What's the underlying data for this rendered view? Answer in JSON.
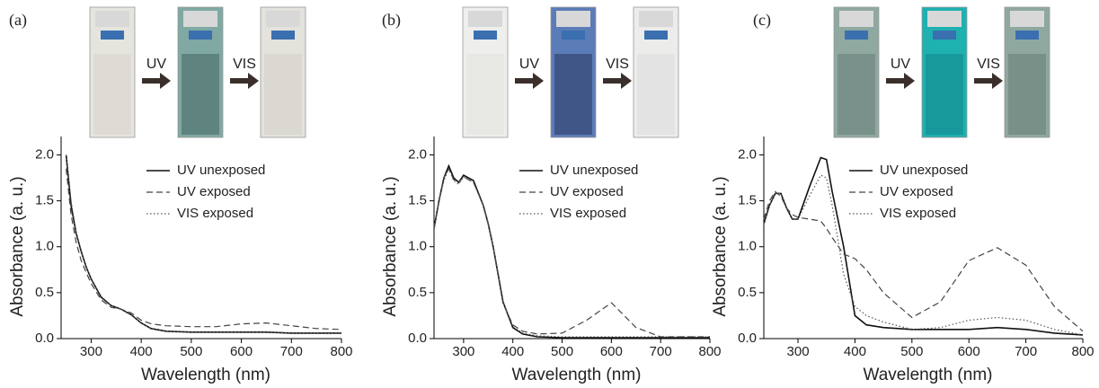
{
  "chart_data": [
    {
      "type": "line",
      "label": "(a)",
      "annotations": [
        "UV",
        "VIS"
      ],
      "xlabel": "Wavelength (nm)",
      "ylabel": "Absorbance (a. u.)",
      "xlim": [
        240,
        800
      ],
      "ylim": [
        0,
        2.2
      ],
      "xticks": [
        300,
        400,
        500,
        600,
        700,
        800
      ],
      "yticks": [
        {
          "value": 0,
          "label": "0.0"
        },
        0.5,
        {
          "value": 1,
          "label": "1.0"
        },
        1.5,
        {
          "value": 2,
          "label": "2.0"
        }
      ],
      "x": [
        240,
        250,
        260,
        270,
        280,
        290,
        300,
        320,
        340,
        350,
        360,
        380,
        400,
        420,
        450,
        500,
        550,
        600,
        650,
        700,
        750,
        800
      ],
      "series": [
        {
          "name": "UV unexposed",
          "color": "#111111",
          "style": "solid",
          "values": [
            null,
            2.0,
            1.45,
            1.15,
            0.95,
            0.78,
            0.65,
            0.45,
            0.36,
            0.34,
            0.32,
            0.26,
            0.17,
            0.11,
            0.08,
            0.07,
            0.07,
            0.07,
            0.07,
            0.06,
            0.06,
            0.06
          ]
        },
        {
          "name": "UV exposed",
          "color": "#444444",
          "style": "dashed",
          "values": [
            null,
            1.85,
            1.35,
            1.05,
            0.85,
            0.72,
            0.6,
            0.42,
            0.34,
            0.33,
            0.32,
            0.28,
            0.2,
            0.16,
            0.14,
            0.13,
            0.13,
            0.16,
            0.17,
            0.14,
            0.11,
            0.1
          ]
        },
        {
          "name": "VIS exposed",
          "color": "#555555",
          "style": "dotted",
          "values": [
            null,
            2.0,
            1.5,
            1.15,
            0.95,
            0.78,
            0.65,
            0.46,
            0.36,
            0.34,
            0.32,
            0.26,
            0.17,
            0.11,
            0.08,
            0.07,
            0.07,
            0.07,
            0.07,
            0.06,
            0.06,
            0.06
          ]
        }
      ]
    },
    {
      "type": "line",
      "label": "(b)",
      "annotations": [
        "UV",
        "VIS"
      ],
      "xlabel": "Wavelength (nm)",
      "ylabel": "Absorbance (a. u.)",
      "xlim": [
        240,
        800
      ],
      "ylim": [
        0,
        2.2
      ],
      "xticks": [
        300,
        400,
        500,
        600,
        700,
        800
      ],
      "yticks": [
        {
          "value": 0,
          "label": "0.0"
        },
        0.5,
        {
          "value": 1,
          "label": "1.0"
        },
        1.5,
        {
          "value": 2,
          "label": "2.0"
        }
      ],
      "x": [
        240,
        250,
        260,
        270,
        280,
        290,
        300,
        320,
        340,
        350,
        360,
        380,
        400,
        420,
        450,
        500,
        550,
        600,
        650,
        700,
        750,
        800
      ],
      "series": [
        {
          "name": "UV unexposed",
          "color": "#111111",
          "style": "solid",
          "values": [
            1.2,
            1.5,
            1.75,
            1.88,
            1.75,
            1.7,
            1.78,
            1.72,
            1.45,
            1.25,
            1.0,
            0.4,
            0.12,
            0.05,
            0.02,
            0.01,
            0.01,
            0.01,
            0.01,
            0.01,
            0.01,
            0.01
          ]
        },
        {
          "name": "UV exposed",
          "color": "#444444",
          "style": "dashed",
          "values": [
            1.2,
            1.5,
            1.75,
            1.85,
            1.73,
            1.7,
            1.76,
            1.7,
            1.45,
            1.25,
            1.0,
            0.38,
            0.15,
            0.08,
            0.05,
            0.06,
            0.2,
            0.39,
            0.12,
            0.02,
            0.02,
            0.02
          ]
        },
        {
          "name": "VIS exposed",
          "color": "#555555",
          "style": "dotted",
          "values": [
            1.2,
            1.5,
            1.72,
            1.85,
            1.72,
            1.68,
            1.76,
            1.7,
            1.45,
            1.25,
            1.0,
            0.4,
            0.13,
            0.06,
            0.03,
            0.02,
            0.02,
            0.02,
            0.02,
            0.02,
            0.02,
            0.02
          ]
        }
      ]
    },
    {
      "type": "line",
      "label": "(c)",
      "annotations": [
        "UV",
        "VIS"
      ],
      "xlabel": "Wavelength (nm)",
      "ylabel": "Absorbance (a. u.)",
      "xlim": [
        240,
        800
      ],
      "ylim": [
        0,
        2.2
      ],
      "xticks": [
        300,
        400,
        500,
        600,
        700,
        800
      ],
      "yticks": [
        {
          "value": 0,
          "label": "0.0"
        },
        0.5,
        {
          "value": 1,
          "label": "1.0"
        },
        1.5,
        {
          "value": 2,
          "label": "2.0"
        }
      ],
      "x": [
        240,
        250,
        260,
        270,
        280,
        290,
        300,
        320,
        340,
        350,
        360,
        380,
        400,
        420,
        450,
        500,
        550,
        600,
        650,
        700,
        750,
        800
      ],
      "series": [
        {
          "name": "UV unexposed",
          "color": "#111111",
          "style": "solid",
          "values": [
            1.25,
            1.45,
            1.58,
            1.58,
            1.42,
            1.3,
            1.3,
            1.65,
            1.97,
            1.95,
            1.6,
            1.0,
            0.25,
            0.15,
            0.12,
            0.1,
            0.1,
            0.1,
            0.12,
            0.1,
            0.06,
            0.04
          ]
        },
        {
          "name": "UV exposed",
          "color": "#444444",
          "style": "dashed",
          "values": [
            1.3,
            1.5,
            1.6,
            1.55,
            1.42,
            1.35,
            1.32,
            1.3,
            1.28,
            1.2,
            1.1,
            0.92,
            0.87,
            0.75,
            0.5,
            0.23,
            0.4,
            0.85,
            0.99,
            0.8,
            0.35,
            0.08
          ]
        },
        {
          "name": "VIS exposed",
          "color": "#555555",
          "style": "dotted",
          "values": [
            1.25,
            1.45,
            1.58,
            1.58,
            1.42,
            1.3,
            1.3,
            1.55,
            1.78,
            1.75,
            1.45,
            0.7,
            0.35,
            0.25,
            0.18,
            0.1,
            0.12,
            0.2,
            0.23,
            0.2,
            0.1,
            0.04
          ]
        }
      ]
    }
  ]
}
